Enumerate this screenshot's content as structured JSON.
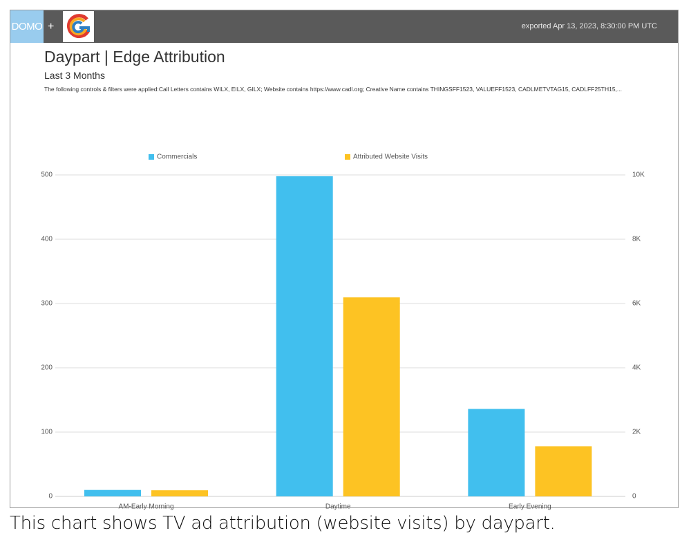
{
  "header": {
    "brand_text": "DOMO",
    "plus": "+",
    "partner_logo_icon": "g-circle-logo-icon",
    "exported": "exported Apr 13, 2023, 8:30:00 PM UTC"
  },
  "card": {
    "title": "Daypart | Edge Attribution",
    "subtitle": "Last 3 Months",
    "filters": "The following controls & filters were applied:Call Letters contains WILX, EILX, GILX; Website contains https://www.cadl.org; Creative Name contains THINGSFF1523, VALUEFF1523, CADLMETVTAG15, CADLFF25TH15,..."
  },
  "caption": "This chart shows TV ad attribution (website visits) by daypart.",
  "chart_data": {
    "type": "bar",
    "categories": [
      "AM-Early Morning",
      "Daytime",
      "Early Evening"
    ],
    "series": [
      {
        "name": "Commercials",
        "axis": "left",
        "color": "#41bfee",
        "values": [
          10,
          498,
          136
        ]
      },
      {
        "name": "Attributed Website Visits",
        "axis": "right",
        "color": "#fdc323",
        "values": [
          190,
          6190,
          1560
        ]
      }
    ],
    "left_axis": {
      "ylim": [
        0,
        500
      ],
      "ticks": [
        0,
        100,
        200,
        300,
        400,
        500
      ],
      "tick_labels": [
        "0",
        "100",
        "200",
        "300",
        "400",
        "500"
      ]
    },
    "right_axis": {
      "ylim": [
        0,
        10000
      ],
      "ticks": [
        0,
        2000,
        4000,
        6000,
        8000,
        10000
      ],
      "tick_labels": [
        "0",
        "2K",
        "4K",
        "6K",
        "8K",
        "10K"
      ]
    },
    "grid": true,
    "legend_position": "top"
  }
}
